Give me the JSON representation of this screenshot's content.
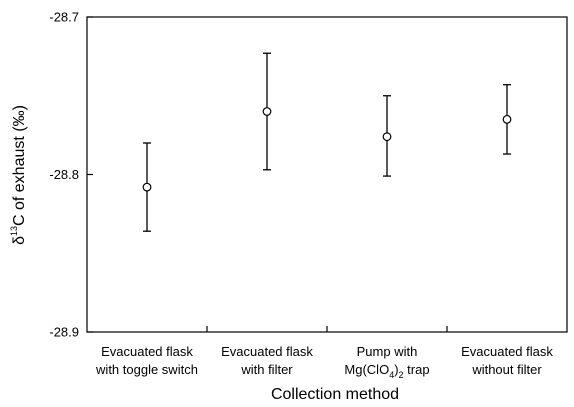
{
  "chart_data": {
    "type": "scatter",
    "subtype": "dot-with-error-bars",
    "title": "",
    "xlabel": "Collection method",
    "ylabel_parts": {
      "delta": "δ",
      "superscript": "13",
      "rest": "C of exhaust (‰)"
    },
    "ylim": [
      -28.9,
      -28.7
    ],
    "yticks": [
      -28.7,
      -28.8,
      -28.9
    ],
    "ytick_labels": [
      "-28.7",
      "-28.8",
      "-28.9"
    ],
    "categories": [
      {
        "line1": "Evacuated flask",
        "line2": "with toggle switch"
      },
      {
        "line1": "Evacuated flask",
        "line2": "with filter"
      },
      {
        "line1": "Pump with",
        "line2_prefix": "Mg(ClO",
        "sub1": "4",
        "mid": ")",
        "sub2": "2",
        "tail": " trap"
      },
      {
        "line1": "Evacuated flask",
        "line2": "without filter"
      }
    ],
    "values": [
      -28.808,
      -28.76,
      -28.776,
      -28.765
    ],
    "error_upper": [
      -28.78,
      -28.723,
      -28.75,
      -28.743
    ],
    "error_lower": [
      -28.836,
      -28.797,
      -28.801,
      -28.787
    ],
    "grid": false,
    "legend": "none",
    "marker": "open-circle"
  }
}
